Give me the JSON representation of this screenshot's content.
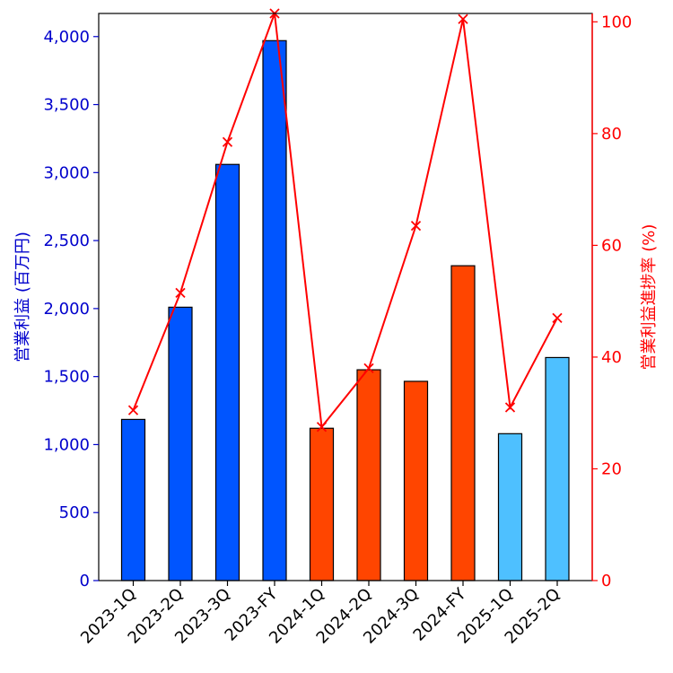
{
  "chart_data": {
    "type": "bar+line",
    "categories": [
      "2023-1Q",
      "2023-2Q",
      "2023-3Q",
      "2023-FY",
      "2024-1Q",
      "2024-2Q",
      "2024-3Q",
      "2024-FY",
      "2025-1Q",
      "2025-2Q"
    ],
    "series": [
      {
        "name": "営業利益",
        "type": "bar",
        "axis": "left",
        "values": [
          1185,
          2010,
          3060,
          3970,
          1120,
          1550,
          1465,
          2315,
          1080,
          1640
        ],
        "colors": [
          "#0055ff",
          "#0055ff",
          "#0055ff",
          "#0055ff",
          "#ff4500",
          "#ff4500",
          "#ff4500",
          "#ff4500",
          "#4ec0ff",
          "#4ec0ff"
        ]
      },
      {
        "name": "営業利益進捗率",
        "type": "line",
        "axis": "right",
        "marker": "x",
        "values": [
          30.5,
          51.5,
          78.5,
          101.5,
          27.5,
          38.0,
          63.5,
          100.5,
          31.0,
          47.0
        ],
        "color": "#ff0000"
      }
    ],
    "ylabel_left": "営業利益 (百万円)",
    "ylabel_right": "営業利益進捗率 (%)",
    "ylim_left": [
      0,
      4170
    ],
    "ylim_right": [
      0,
      101.5
    ],
    "yticks_left": [
      0,
      500,
      1000,
      1500,
      2000,
      2500,
      3000,
      3500,
      4000
    ],
    "yticks_left_labels": [
      "0",
      "500",
      "1,000",
      "1,500",
      "2,000",
      "2,500",
      "3,000",
      "3,500",
      "4,000"
    ],
    "yticks_right": [
      0,
      20,
      40,
      60,
      80,
      100
    ],
    "yticks_right_labels": [
      "0",
      "20",
      "40",
      "60",
      "80",
      "100"
    ],
    "left_axis_color": "#0000cc",
    "right_axis_color": "#ff0000",
    "grid": false
  }
}
